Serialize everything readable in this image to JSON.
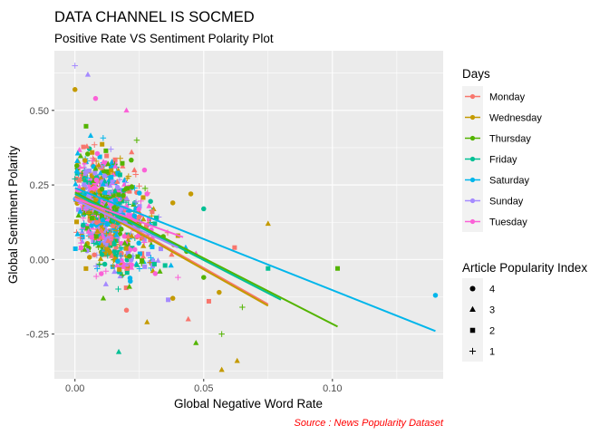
{
  "chart_data": {
    "type": "scatter",
    "title": "DATA CHANNEL IS SOCMED",
    "subtitle": "Positive Rate VS Sentiment Polarity Plot",
    "xlabel": "Global Negative Word Rate",
    "ylabel": "Global Sentiment Polarity",
    "caption": "Source : News Popularity Dataset",
    "xlim": [
      -0.008,
      0.143
    ],
    "ylim": [
      -0.4,
      0.7
    ],
    "x_ticks": [
      0,
      0.05,
      0.1
    ],
    "x_tick_labels": [
      "0.00",
      "0.05",
      "0.10"
    ],
    "y_ticks": [
      -0.25,
      0,
      0.25,
      0.5
    ],
    "y_tick_labels": [
      "-0.25",
      "0.00",
      "0.25",
      "0.50"
    ],
    "grid": true,
    "legend_color_title": "Days",
    "legend_shape_title": "Article Popularity Index",
    "legend_placement": "right",
    "series": [
      {
        "name": "Monday",
        "color": "#F8766D",
        "fit": {
          "x": [
            0,
            0.075
          ],
          "y": [
            0.215,
            -0.15
          ]
        }
      },
      {
        "name": "Wednesday",
        "color": "#C49A00",
        "fit": {
          "x": [
            0,
            0.075
          ],
          "y": [
            0.21,
            -0.155
          ]
        }
      },
      {
        "name": "Thursday",
        "color": "#53B400",
        "fit": {
          "x": [
            0,
            0.102
          ],
          "y": [
            0.225,
            -0.225
          ]
        }
      },
      {
        "name": "Friday",
        "color": "#00C094",
        "fit": {
          "x": [
            0,
            0.08
          ],
          "y": [
            0.22,
            -0.135
          ]
        }
      },
      {
        "name": "Saturday",
        "color": "#00B6EB",
        "fit": {
          "x": [
            0,
            0.14
          ],
          "y": [
            0.24,
            -0.24
          ]
        }
      },
      {
        "name": "Sunday",
        "color": "#A58AFF",
        "fit": {
          "x": [
            0,
            0.04
          ],
          "y": [
            0.2,
            0.04
          ]
        }
      },
      {
        "name": "Tuesday",
        "color": "#FB61D7",
        "fit": {
          "x": [
            0,
            0.042
          ],
          "y": [
            0.205,
            0.075
          ]
        }
      }
    ],
    "shapes": [
      {
        "name": "4",
        "symbol": "circle"
      },
      {
        "name": "3",
        "symbol": "triangle"
      },
      {
        "name": "2",
        "symbol": "square"
      },
      {
        "name": "1",
        "symbol": "plus"
      }
    ],
    "notable_points": [
      {
        "x": 0,
        "y": 0.65,
        "day": "Sunday",
        "shape": "1"
      },
      {
        "x": 0.005,
        "y": 0.62,
        "day": "Sunday",
        "shape": "3"
      },
      {
        "x": 0,
        "y": 0.57,
        "day": "Wednesday",
        "shape": "4"
      },
      {
        "x": 0.075,
        "y": 0.12,
        "day": "Wednesday",
        "shape": "3"
      },
      {
        "x": 0.14,
        "y": -0.12,
        "day": "Saturday",
        "shape": "4"
      },
      {
        "x": 0.102,
        "y": -0.03,
        "day": "Thursday",
        "shape": "2"
      },
      {
        "x": 0.057,
        "y": -0.37,
        "day": "Wednesday",
        "shape": "3"
      },
      {
        "x": 0.063,
        "y": -0.34,
        "day": "Wednesday",
        "shape": "3"
      },
      {
        "x": 0.017,
        "y": -0.31,
        "day": "Friday",
        "shape": "3"
      },
      {
        "x": 0.057,
        "y": -0.25,
        "day": "Thursday",
        "shape": "1"
      },
      {
        "x": 0.047,
        "y": -0.28,
        "day": "Thursday",
        "shape": "3"
      },
      {
        "x": 0.065,
        "y": -0.16,
        "day": "Thursday",
        "shape": "1"
      },
      {
        "x": 0.056,
        "y": -0.11,
        "day": "Wednesday",
        "shape": "4"
      },
      {
        "x": 0.075,
        "y": -0.03,
        "day": "Friday",
        "shape": "2"
      },
      {
        "x": 0.062,
        "y": 0.04,
        "day": "Monday",
        "shape": "2"
      },
      {
        "x": 0.045,
        "y": 0.22,
        "day": "Wednesday",
        "shape": "4"
      },
      {
        "x": 0.028,
        "y": 0.22,
        "day": "Tuesday",
        "shape": "4"
      },
      {
        "x": 0.024,
        "y": 0.4,
        "day": "Thursday",
        "shape": "1"
      },
      {
        "x": 0.02,
        "y": 0.5,
        "day": "Tuesday",
        "shape": "3"
      },
      {
        "x": 0.008,
        "y": 0.54,
        "day": "Tuesday",
        "shape": "4"
      },
      {
        "x": 0.05,
        "y": 0.17,
        "day": "Friday",
        "shape": "4"
      },
      {
        "x": 0.04,
        "y": -0.06,
        "day": "Tuesday",
        "shape": "1"
      },
      {
        "x": 0.038,
        "y": -0.13,
        "day": "Wednesday",
        "shape": "4"
      },
      {
        "x": 0.052,
        "y": -0.14,
        "day": "Monday",
        "shape": "2"
      },
      {
        "x": 0.028,
        "y": -0.21,
        "day": "Wednesday",
        "shape": "3"
      },
      {
        "x": 0.011,
        "y": -0.13,
        "day": "Thursday",
        "shape": "3"
      },
      {
        "x": 0.02,
        "y": -0.17,
        "day": "Monday",
        "shape": "4"
      },
      {
        "x": 0.044,
        "y": -0.2,
        "day": "Monday",
        "shape": "3"
      },
      {
        "x": 0.04,
        "y": 0.08,
        "day": "Wednesday",
        "shape": "2"
      },
      {
        "x": 0.035,
        "y": -0.02,
        "day": "Friday",
        "shape": "2"
      },
      {
        "x": 0.033,
        "y": -0.04,
        "day": "Thursday",
        "shape": "3"
      },
      {
        "x": 0.043,
        "y": 0.04,
        "day": "Saturday",
        "shape": "3"
      },
      {
        "x": 0.031,
        "y": 0.12,
        "day": "Friday",
        "shape": "2"
      },
      {
        "x": 0.036,
        "y": 0.09,
        "day": "Monday",
        "shape": "1"
      },
      {
        "x": 0.027,
        "y": 0.3,
        "day": "Tuesday",
        "shape": "4"
      },
      {
        "x": 0.022,
        "y": 0.36,
        "day": "Monday",
        "shape": "3"
      },
      {
        "x": 0.03,
        "y": 0.16,
        "day": "Monday",
        "shape": "2"
      },
      {
        "x": 0.047,
        "y": 0.02,
        "day": "Tuesday",
        "shape": "3"
      },
      {
        "x": 0.05,
        "y": -0.06,
        "day": "Thursday",
        "shape": "4"
      },
      {
        "x": 0.038,
        "y": 0.19,
        "day": "Wednesday",
        "shape": "4"
      }
    ]
  }
}
